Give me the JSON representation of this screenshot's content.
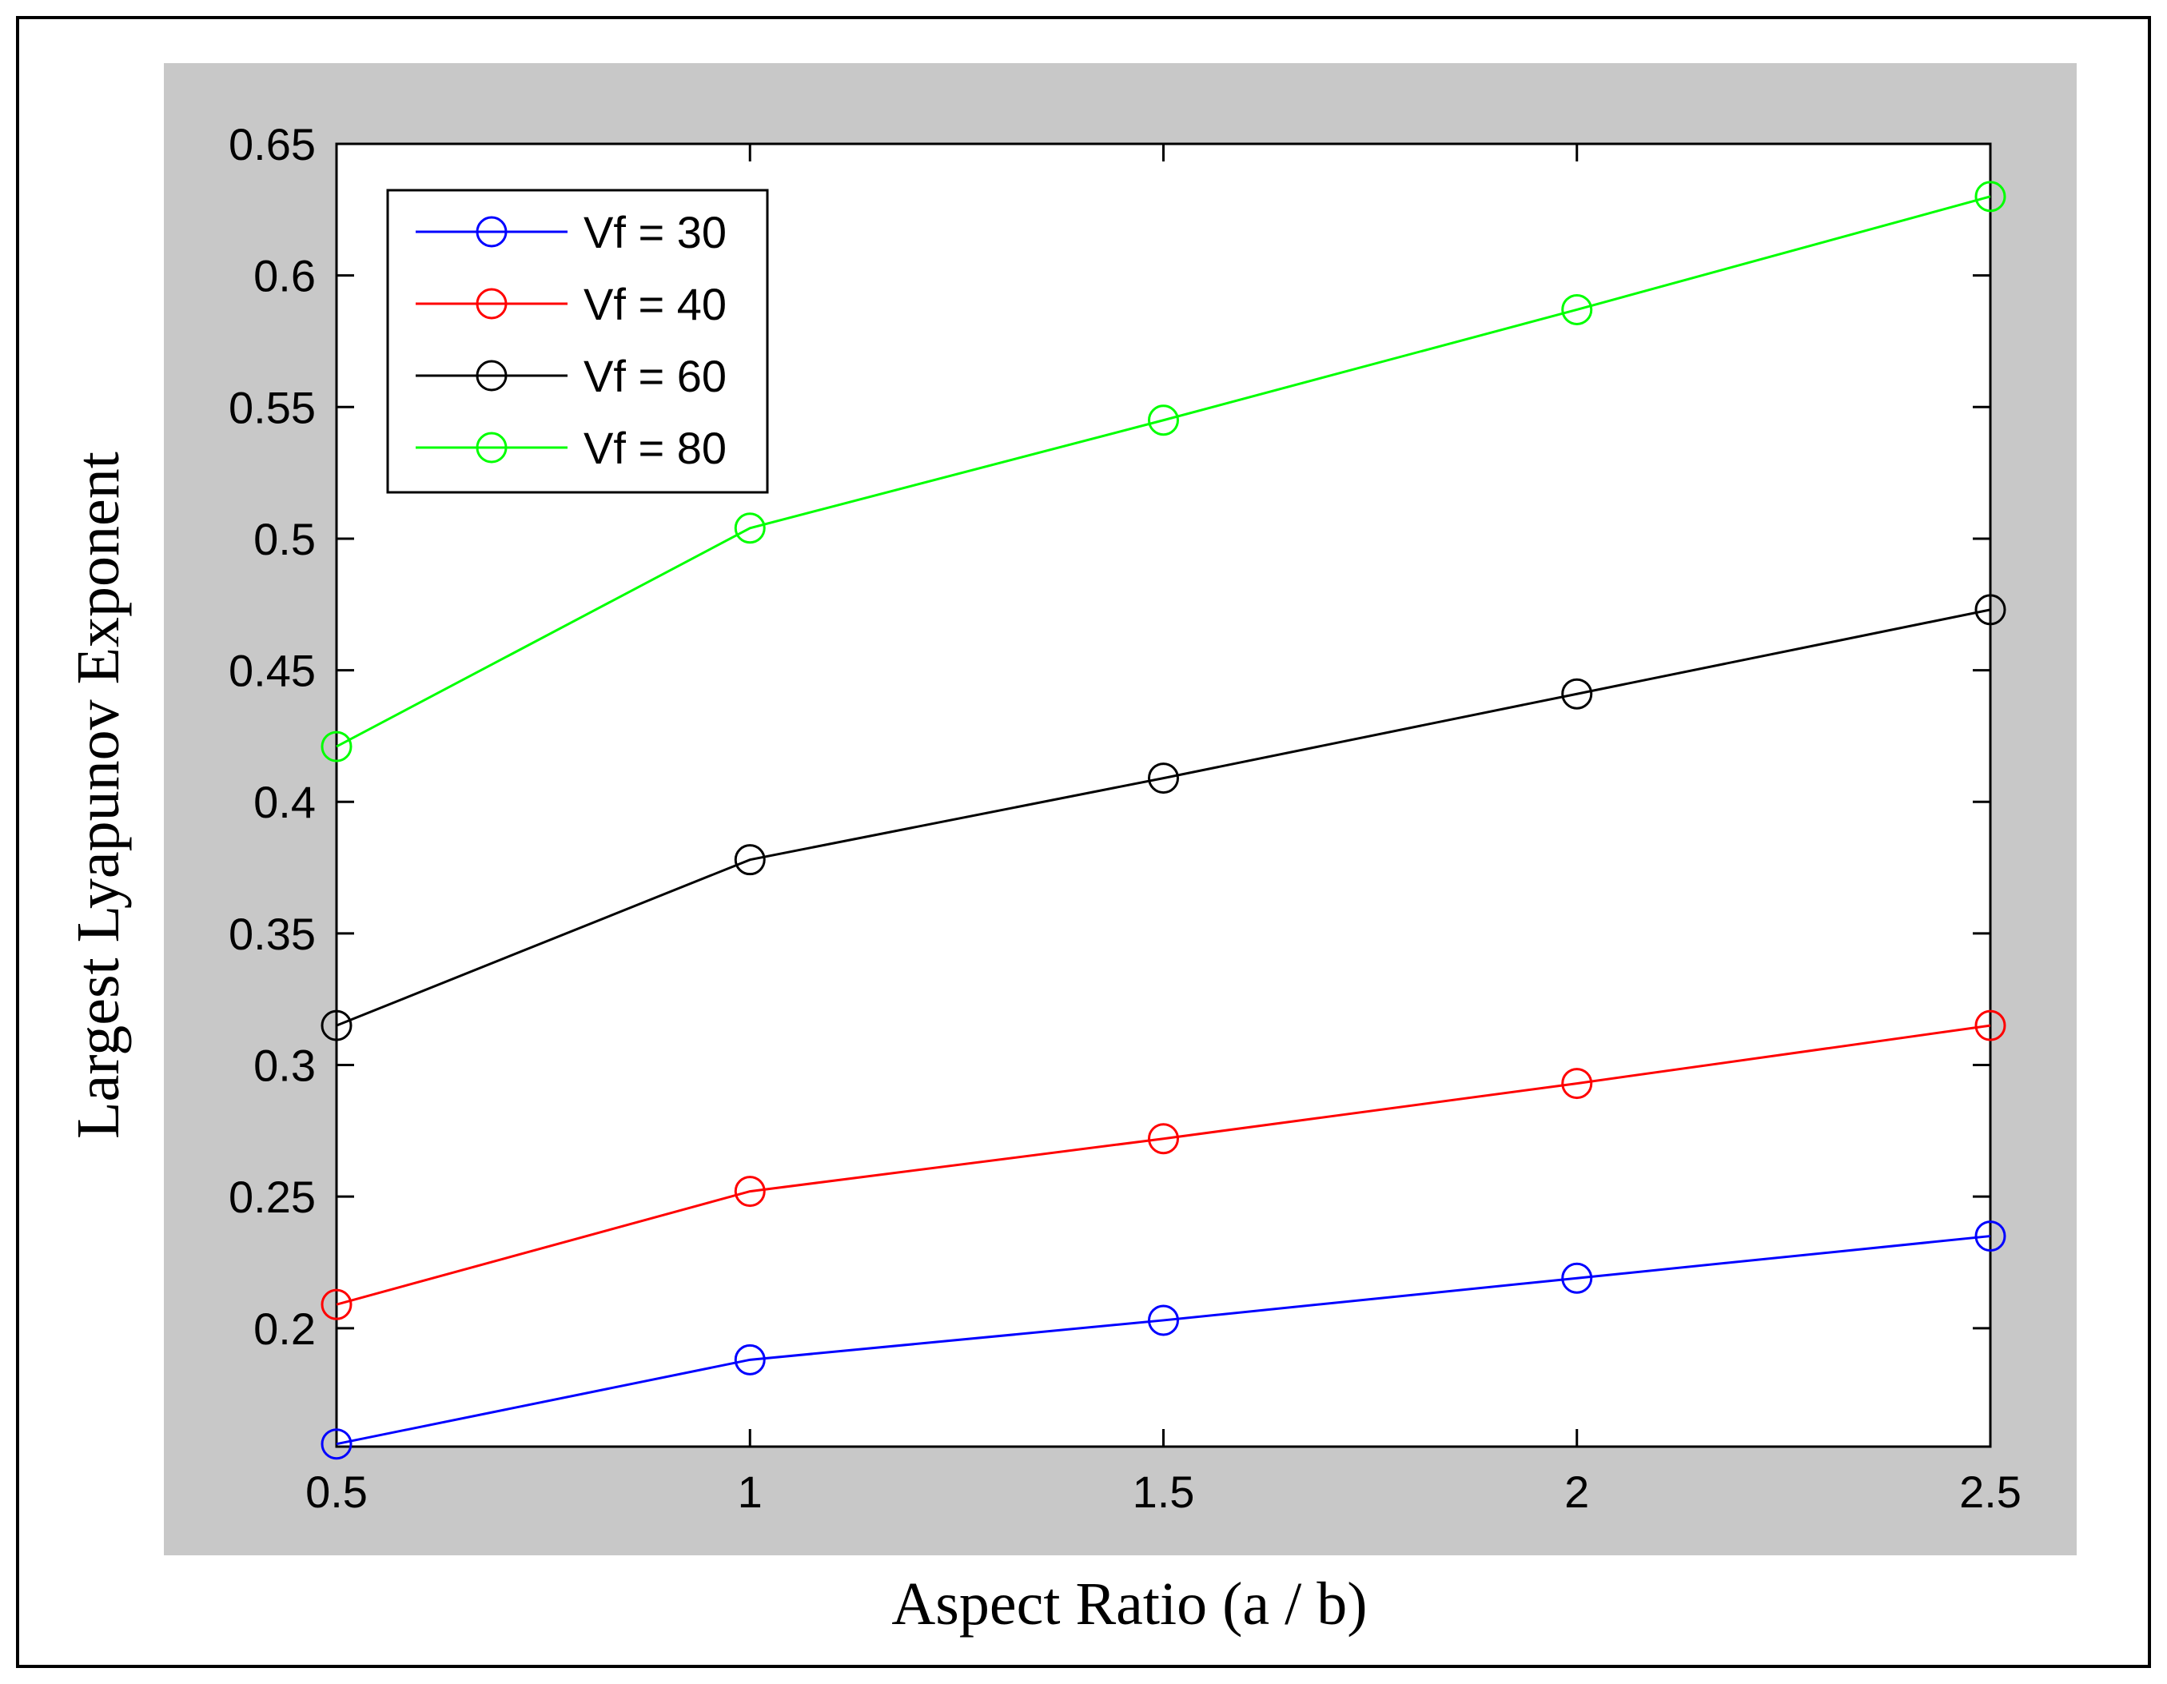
{
  "chart_data": {
    "type": "line",
    "title": "",
    "xlabel": "Aspect Ratio (a / b)",
    "ylabel": "Largest Lyapunov Exponent",
    "x": [
      0.5,
      1,
      1.5,
      2,
      2.5
    ],
    "xlim": [
      0.5,
      2.5
    ],
    "ylim": [
      0.155,
      0.65
    ],
    "xticks": [
      0.5,
      1,
      1.5,
      2,
      2.5
    ],
    "xtick_labels": [
      "0.5",
      "1",
      "1.5",
      "2",
      "2.5"
    ],
    "yticks": [
      0.2,
      0.25,
      0.3,
      0.35,
      0.4,
      0.45,
      0.5,
      0.55,
      0.6,
      0.65
    ],
    "ytick_labels": [
      "0.2",
      "0.25",
      "0.3",
      "0.35",
      "0.4",
      "0.45",
      "0.5",
      "0.55",
      "0.6",
      "0.65"
    ],
    "grid": false,
    "marker": "open-circle",
    "legend_position": "top-left",
    "series": [
      {
        "name": "Vf = 30",
        "color": "#0000ff",
        "values": [
          0.156,
          0.188,
          0.203,
          0.219,
          0.235
        ]
      },
      {
        "name": "Vf = 40",
        "color": "#ff0000",
        "values": [
          0.209,
          0.252,
          0.272,
          0.293,
          0.315
        ]
      },
      {
        "name": "Vf = 60",
        "color": "#000000",
        "values": [
          0.315,
          0.378,
          0.409,
          0.441,
          0.473
        ]
      },
      {
        "name": "Vf = 80",
        "color": "#00ff00",
        "values": [
          0.421,
          0.504,
          0.545,
          0.587,
          0.63
        ]
      }
    ]
  }
}
